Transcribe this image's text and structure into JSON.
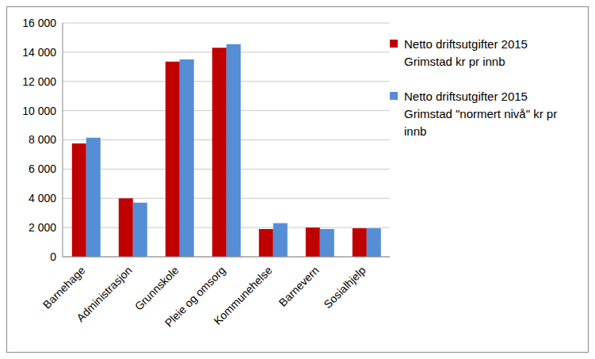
{
  "chart_data": {
    "type": "bar",
    "categories": [
      "Barnehage",
      "Administrasjon",
      "Grunnskole",
      "Pleie og omsorg",
      "Kommunehelse",
      "Barnevern",
      "Sosialhjelp"
    ],
    "series": [
      {
        "name": "Netto driftsutgifter 2015 Grimstad kr pr innb",
        "color": "#c00000",
        "values": [
          7750,
          4000,
          13350,
          14300,
          1900,
          2000,
          1950
        ]
      },
      {
        "name": "Netto driftsutgifter 2015 Grimstad \"normert nivå\" kr pr innb",
        "color": "#558ed5",
        "values": [
          8150,
          3700,
          13500,
          14550,
          2300,
          1900,
          1950
        ]
      }
    ],
    "ylim": [
      0,
      16000
    ],
    "yticks": [
      0,
      {
        "value": 2000,
        "label": "2 000"
      },
      {
        "value": 4000,
        "label": "4 000"
      },
      {
        "value": 6000,
        "label": "6 000"
      },
      {
        "value": 8000,
        "label": "8 000"
      },
      {
        "value": 10000,
        "label": "10 000"
      },
      {
        "value": 12000,
        "label": "12 000"
      },
      {
        "value": 14000,
        "label": "14 000"
      },
      {
        "value": 16000,
        "label": "16 000"
      }
    ],
    "grid": true,
    "legend": "right"
  }
}
